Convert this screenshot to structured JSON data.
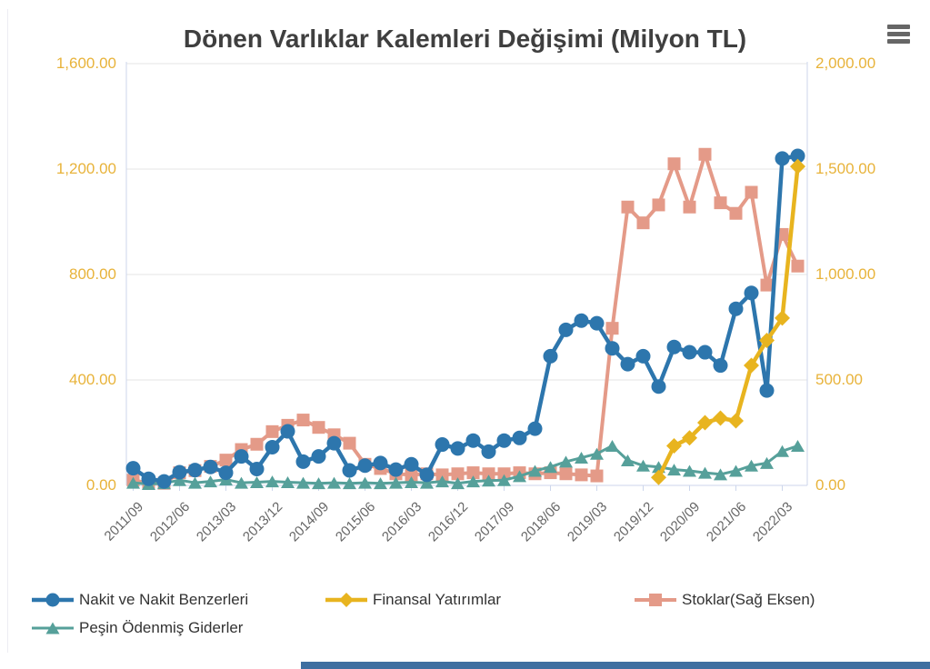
{
  "title": "Dönen Varlıklar Kalemleri Değişimi (Milyon TL)",
  "controls": {
    "context_menu_icon": "hamburger-menu-icon"
  },
  "colors": {
    "title_text": "#3f3f3f",
    "axis_label_gold": "#e8b33a",
    "x_label_gray": "#666666",
    "grid_line": "#e6e6e6",
    "axis_line": "#ccd6eb",
    "legend_text": "#333333",
    "menu_icon": "#666666",
    "bottom_bar": "#3f6fa0"
  },
  "chart_data": {
    "type": "line",
    "title": "Dönen Varlıklar Kalemleri Değişimi (Milyon TL)",
    "unit": "Milyon TL",
    "grid": true,
    "legend_position": "bottom-left",
    "x_label_every": 3,
    "categories": [
      "2011/09",
      "2011/12",
      "2012/03",
      "2012/06",
      "2012/09",
      "2012/12",
      "2013/03",
      "2013/06",
      "2013/09",
      "2013/12",
      "2014/03",
      "2014/06",
      "2014/09",
      "2014/12",
      "2015/03",
      "2015/06",
      "2015/09",
      "2015/12",
      "2016/03",
      "2016/06",
      "2016/09",
      "2016/12",
      "2017/03",
      "2017/06",
      "2017/09",
      "2017/12",
      "2018/03",
      "2018/06",
      "2018/09",
      "2018/12",
      "2019/03",
      "2019/06",
      "2019/09",
      "2019/12",
      "2020/03",
      "2020/06",
      "2020/09",
      "2020/12",
      "2021/03",
      "2021/06",
      "2021/09",
      "2021/12",
      "2022/03",
      "2022/06"
    ],
    "x_tick_labels_shown": [
      "2011/09",
      "2012/06",
      "2013/03",
      "2013/12",
      "2014/09",
      "2015/06",
      "2016/03",
      "2016/12",
      "2017/09",
      "2018/06",
      "2019/03",
      "2019/12",
      "2020/09",
      "2021/06",
      "2022/03"
    ],
    "left_axis": {
      "min": 0,
      "max": 1600,
      "tick_interval": 400,
      "tick_labels": [
        "0.00",
        "400.00",
        "800.00",
        "1,200.00",
        "1,600.00"
      ]
    },
    "right_axis": {
      "min": 0,
      "max": 2000,
      "tick_interval": 500,
      "tick_labels": [
        "0.00",
        "500.00",
        "1,000.00",
        "1,500.00",
        "2,000.00"
      ]
    },
    "series": [
      {
        "name": "Nakit ve Nakit Benzerleri",
        "color": "#2d76ad",
        "marker": "circle",
        "axis": "left",
        "values": [
          65,
          25,
          15,
          50,
          58,
          70,
          48,
          110,
          62,
          145,
          205,
          90,
          110,
          160,
          57,
          75,
          85,
          60,
          80,
          40,
          155,
          140,
          170,
          128,
          170,
          180,
          215,
          490,
          590,
          625,
          615,
          520,
          460,
          490,
          375,
          525,
          505,
          505,
          455,
          670,
          730,
          360,
          1240,
          1250
        ]
      },
      {
        "name": "Finansal Yatırımlar",
        "color": "#e8b41f",
        "marker": "diamond",
        "axis": "left",
        "values": [
          null,
          null,
          null,
          null,
          null,
          null,
          null,
          null,
          null,
          null,
          null,
          null,
          null,
          null,
          null,
          null,
          null,
          null,
          null,
          null,
          null,
          null,
          null,
          null,
          null,
          null,
          null,
          null,
          null,
          null,
          null,
          null,
          null,
          null,
          30,
          150,
          180,
          238,
          255,
          245,
          455,
          550,
          635,
          1210
        ]
      },
      {
        "name": "Stoklar(Sağ Eksen)",
        "color": "#e49a88",
        "marker": "square",
        "axis": "right",
        "values": [
          25,
          10,
          10,
          60,
          70,
          90,
          120,
          170,
          195,
          255,
          285,
          310,
          275,
          240,
          200,
          100,
          80,
          55,
          50,
          55,
          50,
          55,
          60,
          55,
          55,
          60,
          55,
          60,
          55,
          50,
          45,
          745,
          1320,
          1245,
          1330,
          1525,
          1320,
          1570,
          1340,
          1290,
          1390,
          950,
          1190,
          1040
        ]
      },
      {
        "name": "Peşin Ödenmiş Giderler",
        "color": "#56a09a",
        "marker": "triangle",
        "axis": "left",
        "values": [
          10,
          5,
          8,
          20,
          10,
          15,
          22,
          10,
          12,
          15,
          12,
          10,
          8,
          10,
          8,
          10,
          8,
          10,
          12,
          10,
          15,
          8,
          15,
          18,
          20,
          35,
          55,
          70,
          90,
          105,
          120,
          150,
          95,
          75,
          70,
          60,
          55,
          48,
          42,
          55,
          75,
          85,
          130,
          150
        ]
      }
    ],
    "z_order": [
      2,
      3,
      0,
      1
    ]
  }
}
